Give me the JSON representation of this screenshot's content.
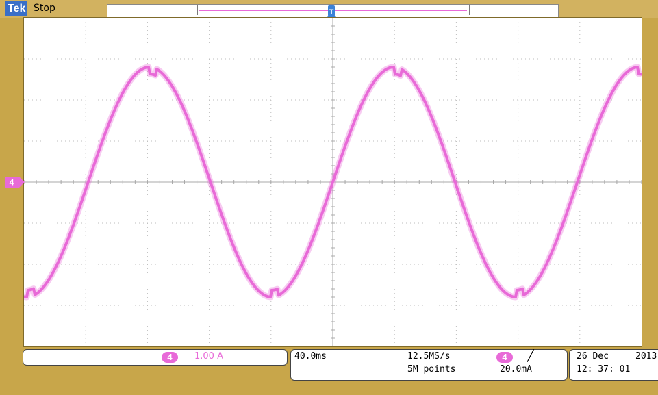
{
  "header": {
    "logo": "Tek",
    "run_status": "Stop",
    "trigger_marker_label": "T"
  },
  "channel": {
    "number": "4",
    "scale": "1.00 A",
    "color": "#e86ad8",
    "ground_marker_label": "4"
  },
  "horizontal": {
    "timebase": "40.0ms",
    "sample_rate": "12.5MS/s",
    "record_length": "5M points"
  },
  "trigger": {
    "source": "4",
    "slope_icon": "rising-edge-icon",
    "slope_glyph": "╱",
    "level": "20.0mA"
  },
  "datetime": {
    "day_month": "26 Dec",
    "year": "2013",
    "time": "12: 37: 01"
  },
  "waveform": {
    "divisions_x": 10,
    "divisions_y": 8,
    "amplitude_div": 2.8,
    "period_div": 3.96,
    "phase_start_div": 0,
    "trace_color": "#e86ad8",
    "grid_color": "#bdbdbd"
  }
}
